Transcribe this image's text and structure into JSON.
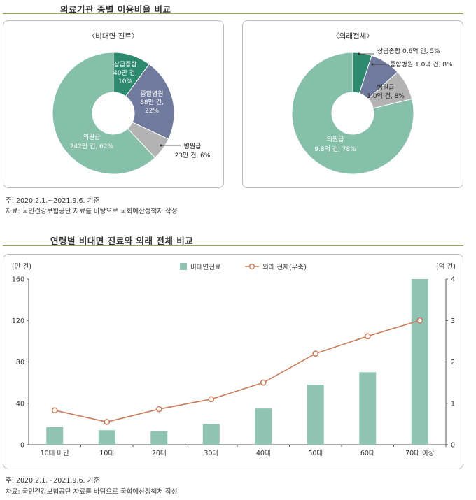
{
  "header": {
    "title": "의료기관 종별 이용비율 비교"
  },
  "chart_data": [
    {
      "type": "pie",
      "title": "〈비대면 진료〉",
      "slices": [
        {
          "name": "상급종합",
          "value_label": "40만 건,",
          "pct_label": "10%",
          "value": 10,
          "color": "#2e8a6e"
        },
        {
          "name": "종합병원",
          "value_label": "88만 건,",
          "pct_label": "22%",
          "value": 22,
          "color": "#6f7a9c"
        },
        {
          "name": "병원급",
          "value_label": "23만 건, 6%",
          "pct_label": "",
          "value": 6,
          "color": "#b3b3b3"
        },
        {
          "name": "의원급",
          "value_label": "242만 건, 62%",
          "pct_label": "",
          "value": 62,
          "color": "#86bfaa"
        }
      ]
    },
    {
      "type": "pie",
      "title": "〈외래전체〉",
      "slices": [
        {
          "name": "상급종합",
          "value_label": "상급종합 0.6억 건, 5%",
          "pct_label": "",
          "value": 5,
          "color": "#2e8a6e"
        },
        {
          "name": "종합병원",
          "value_label": "종합병원 1.0억 건, 8%",
          "pct_label": "",
          "value": 8,
          "color": "#6f7a9c"
        },
        {
          "name": "병원급",
          "value_label": "1.0억 건, 8%",
          "pct_label": "",
          "value": 8,
          "color": "#b3b3b3"
        },
        {
          "name": "의원급",
          "value_label": "9.8억 건, 78%",
          "pct_label": "",
          "value": 78,
          "color": "#86bfaa"
        }
      ]
    },
    {
      "type": "bar",
      "title": "연령별 비대면 진료와 외래 전체 비교",
      "ylabel": "(만 건)",
      "y2label": "(억 건)",
      "ylim": [
        0,
        160
      ],
      "y2lim": [
        0,
        4
      ],
      "yticks": [
        0,
        40,
        80,
        120,
        160
      ],
      "y2ticks": [
        0,
        1,
        2,
        3,
        4
      ],
      "categories": [
        "10대 미만",
        "10대",
        "20대",
        "30대",
        "40대",
        "50대",
        "60대",
        "70대 이상"
      ],
      "legend_position": "top-center",
      "series": [
        {
          "name": "비대면진료",
          "type": "bar",
          "axis": "left",
          "color": "#8fc4b2",
          "values": [
            17,
            14,
            13,
            20,
            35,
            58,
            70,
            160
          ]
        },
        {
          "name": "외래 전체(우축)",
          "type": "line",
          "axis": "right",
          "color": "#c87a5a",
          "values": [
            0.83,
            0.55,
            0.86,
            1.1,
            1.5,
            2.2,
            2.62,
            3.0
          ]
        }
      ]
    }
  ],
  "notes": {
    "top_period": "주: 2020.2.1.~2021.9.6. 기준",
    "top_source": "자료: 국민건강보험공단 자료를 바탕으로 국회예산정책처 작성",
    "bottom_period": "주: 2020.2.1.~2021.9.6. 기준",
    "bottom_source": "자료: 국민건강보험공단 자료를 바탕으로 국회예산정책처 작성"
  },
  "colors": {
    "accent_rule": "#9aa84a",
    "axis": "#555555",
    "grid": "#dddddd"
  }
}
